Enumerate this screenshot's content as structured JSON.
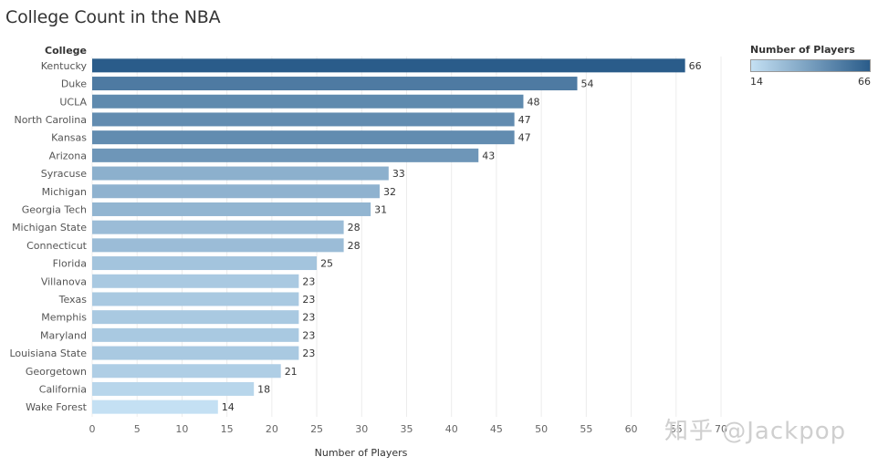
{
  "chart_data": {
    "type": "bar",
    "orientation": "horizontal",
    "title": "College Count in the NBA",
    "row_header": "College",
    "xlabel": "Number of Players",
    "xlim": [
      0,
      70
    ],
    "xticks": [
      0,
      5,
      10,
      15,
      20,
      25,
      30,
      35,
      40,
      45,
      50,
      55,
      60,
      65,
      70
    ],
    "grid": true,
    "color_scale": {
      "title": "Number of Players",
      "min": 14,
      "max": 66,
      "low_color": "#c4e0f3",
      "high_color": "#2a5c8a"
    },
    "categories": [
      "Kentucky",
      "Duke",
      "UCLA",
      "North Carolina",
      "Kansas",
      "Arizona",
      "Syracuse",
      "Michigan",
      "Georgia Tech",
      "Michigan State",
      "Connecticut",
      "Florida",
      "Villanova",
      "Texas",
      "Memphis",
      "Maryland",
      "Louisiana State",
      "Georgetown",
      "California",
      "Wake Forest"
    ],
    "values": [
      66,
      54,
      48,
      47,
      47,
      43,
      33,
      32,
      31,
      28,
      28,
      25,
      23,
      23,
      23,
      23,
      23,
      21,
      18,
      14
    ]
  },
  "legend": {
    "title": "Number of Players",
    "min_label": "14",
    "max_label": "66"
  },
  "watermark": "知乎 @Jackpop"
}
